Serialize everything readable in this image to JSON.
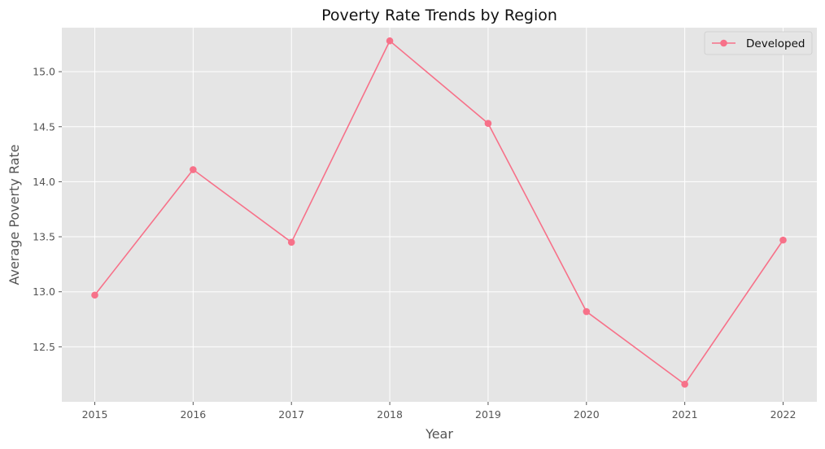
{
  "chart_data": {
    "type": "line",
    "title": "Poverty Rate Trends by Region",
    "xlabel": "Year",
    "ylabel": "Average Poverty Rate",
    "x": [
      "2015",
      "2016",
      "2017",
      "2018",
      "2019",
      "2020",
      "2021",
      "2022"
    ],
    "series": [
      {
        "name": "Developed",
        "color": "#f77189",
        "marker": "circle",
        "values": [
          12.97,
          14.11,
          13.45,
          15.28,
          14.53,
          12.82,
          12.16,
          13.47
        ]
      }
    ],
    "ylim": [
      12.0,
      15.4
    ],
    "yticks": [
      "12.5",
      "13.0",
      "13.5",
      "14.0",
      "14.5",
      "15.0"
    ],
    "grid": true,
    "legend": "top-right",
    "background": "#e5e5e5"
  }
}
